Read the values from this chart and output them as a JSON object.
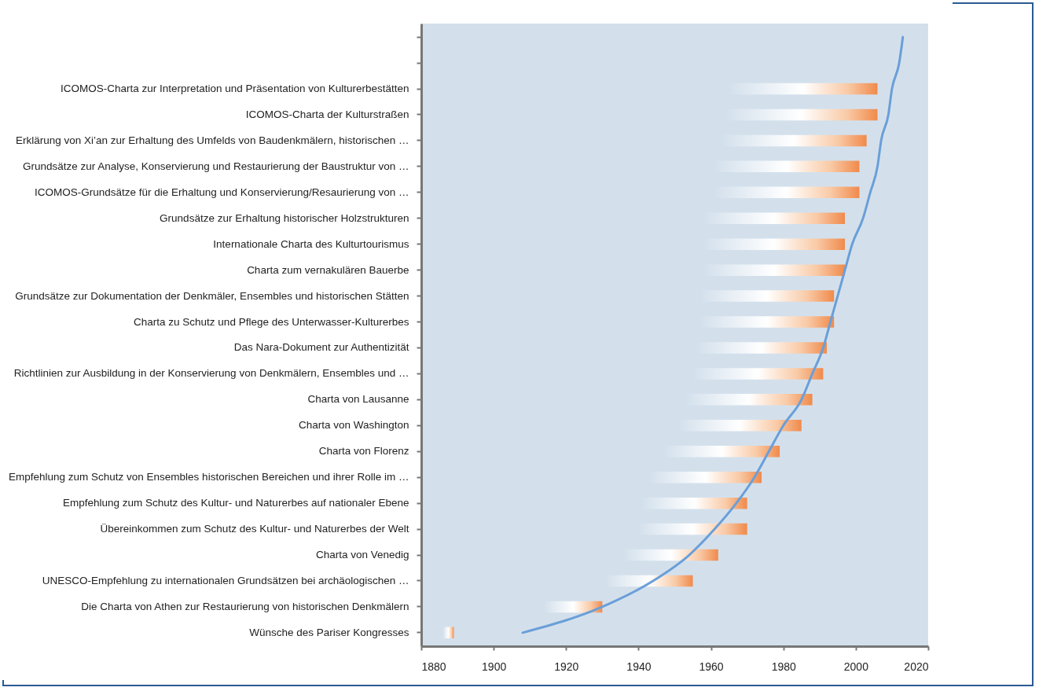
{
  "chart_data": {
    "type": "bar",
    "orientation": "horizontal",
    "categories": [
      null,
      null,
      "ICOMOS-Charta zur Interpretation und Präsentation von Kulturerbestätten",
      "ICOMOS-Charta der Kulturstraßen",
      "Erklärung von Xi’an zur Erhaltung des Umfelds von Baudenkmälern, historischen …",
      "Grundsätze zur Analyse, Konservierung und Restaurierung der Baustruktur von …",
      "ICOMOS-Grundsätze für die Erhaltung und Konservierung/Resaurierung von …",
      "Grundsätze zur Erhaltung historischer Holzstrukturen",
      "Internationale Charta des Kulturtourismus",
      "Charta zum vernakulären Bauerbe",
      "Grundsätze zur Dokumentation der Denkmäler, Ensembles und historischen Stätten",
      "Charta zu Schutz und Pflege des Unterwasser-Kulturerbes",
      "Das Nara-Dokument zur Authentizität",
      "Richtlinien zur Ausbildung in der Konservierung von Denkmälern, Ensembles und …",
      "Charta von Lausanne",
      "Charta von Washington",
      "Charta von Florenz",
      "Empfehlung zum Schutz von Ensembles historischen Bereichen und ihrer Rolle im …",
      "Empfehlung zum Schutz des Kultur- und Naturerbes auf nationaler Ebene",
      "Übereinkommen zum Schutz des Kultur- und Naturerbes der Welt",
      "Charta von Venedig",
      "UNESCO-Empfehlung zu internationalen Grundsätzen bei archäologischen …",
      "Die Charta von Athen zur Restaurierung von historischen Denkmälern",
      "Wünsche des Pariser Kongresses"
    ],
    "series": [
      {
        "color": "#f08a4b",
        "base": [
          null,
          null,
          1965,
          1964,
          1963,
          1961,
          1961,
          1958,
          1958,
          1958,
          1957,
          1957,
          1956,
          1955,
          1953,
          1951,
          1947,
          1943,
          1941,
          1940,
          1936,
          1931,
          1914,
          1886
        ],
        "values": [
          null,
          null,
          41,
          42,
          40,
          40,
          40,
          39,
          39,
          39,
          37,
          37,
          36,
          36,
          35,
          34,
          32,
          31,
          29,
          30,
          26,
          24,
          16,
          3
        ]
      },
      {
        "type": "line",
        "color": "#6a9fd8",
        "values": [
          2013,
          2012,
          2010,
          2009,
          2007,
          2006,
          2004,
          2002,
          1999,
          1997,
          1995,
          1993,
          1991,
          1988,
          1985,
          1980,
          1976,
          1972,
          1967,
          1961,
          1954,
          1944,
          1930,
          1908
        ]
      }
    ],
    "xlim": [
      1880,
      2020
    ],
    "xticks": [
      1880,
      1900,
      1920,
      1940,
      1960,
      1980,
      2000,
      2020
    ],
    "grid": false
  }
}
